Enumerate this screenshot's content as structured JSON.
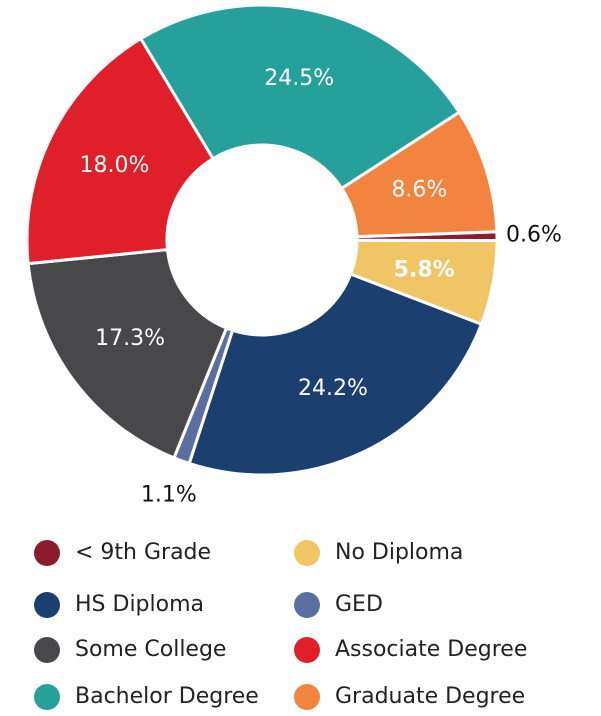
{
  "chart_data": {
    "type": "pie",
    "donut": true,
    "categories": [
      "< 9th Grade",
      "No Diploma",
      "HS Diploma",
      "GED",
      "Some College",
      "Associate Degree",
      "Bachelor Degree",
      "Graduate Degree"
    ],
    "values": [
      0.6,
      5.8,
      24.2,
      1.1,
      17.3,
      18.0,
      24.5,
      8.6
    ],
    "value_labels": [
      "0.6%",
      "5.8%",
      "24.2%",
      "1.1%",
      "17.3%",
      "18.0%",
      "24.5%",
      "8.6%"
    ],
    "colors": [
      "#8c1c2c",
      "#efc566",
      "#1b3f6e",
      "#5a6fa0",
      "#48484a",
      "#e11f2b",
      "#25a09a",
      "#f38440"
    ],
    "legend": "bottom"
  }
}
